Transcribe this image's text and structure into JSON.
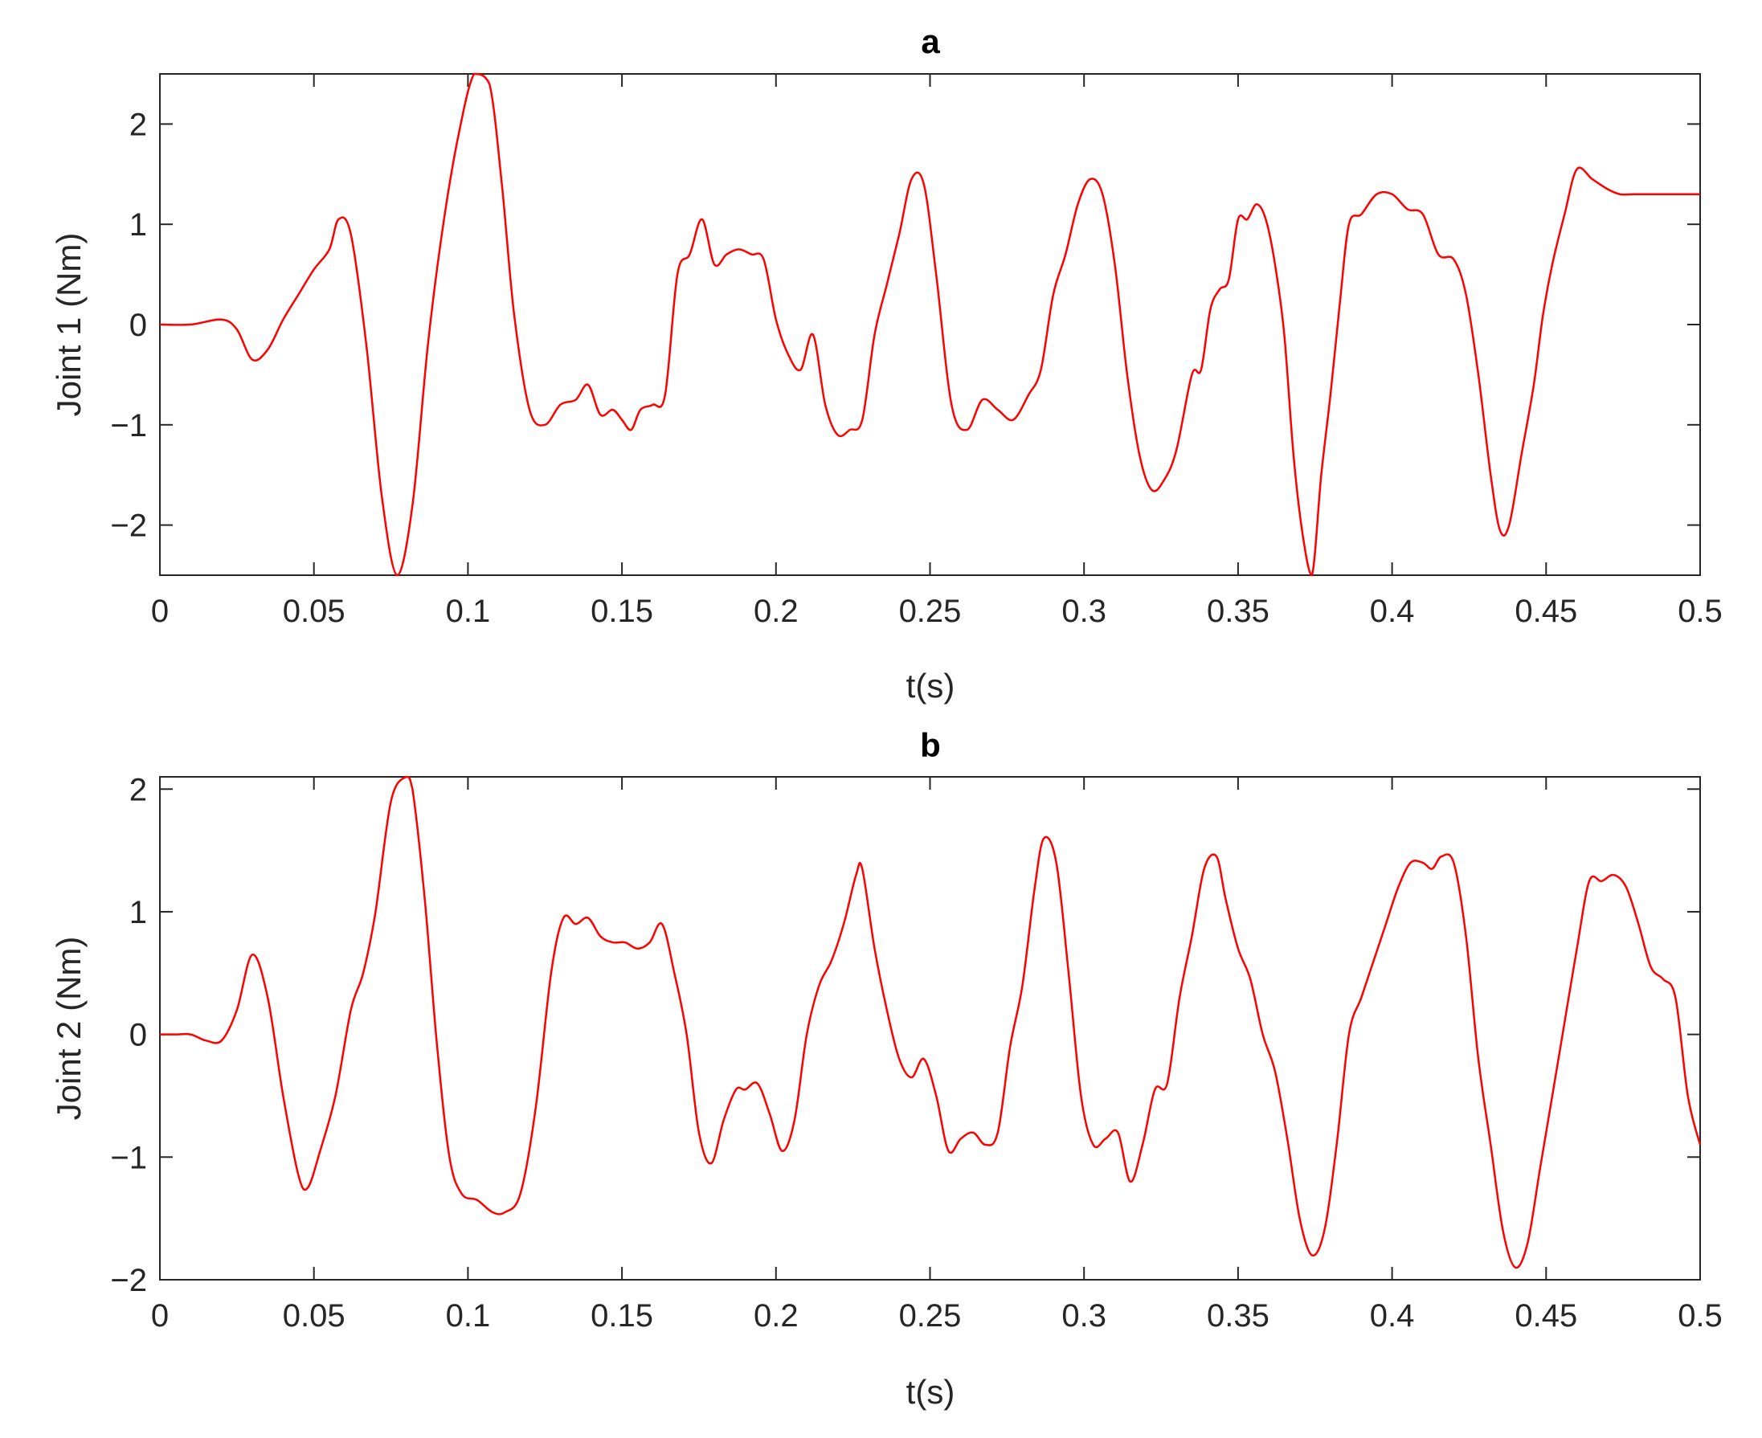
{
  "chart_data": [
    {
      "type": "line",
      "title": "a",
      "xlabel": "t(s)",
      "ylabel": "Joint 1 (Nm)",
      "xlim": [
        0,
        0.5
      ],
      "ylim": [
        -2.5,
        2.5
      ],
      "xticks": [
        0,
        0.05,
        0.1,
        0.15,
        0.2,
        0.25,
        0.3,
        0.35,
        0.4,
        0.45,
        0.5
      ],
      "xtick_labels": [
        "0",
        "0.05",
        "0.1",
        "0.15",
        "0.2",
        "0.25",
        "0.3",
        "0.35",
        "0.4",
        "0.45",
        "0.5"
      ],
      "yticks": [
        -2,
        -1,
        0,
        1,
        2
      ],
      "ytick_labels": [
        "−2",
        "−1",
        "0",
        "1",
        "2"
      ],
      "grid": false,
      "series": [
        {
          "color": "#ff0000",
          "x": [
            0,
            0.01,
            0.02,
            0.025,
            0.03,
            0.035,
            0.04,
            0.045,
            0.05,
            0.055,
            0.058,
            0.062,
            0.067,
            0.072,
            0.077,
            0.082,
            0.087,
            0.092,
            0.097,
            0.102,
            0.107,
            0.111,
            0.115,
            0.12,
            0.125,
            0.13,
            0.135,
            0.139,
            0.143,
            0.147,
            0.15,
            0.153,
            0.156,
            0.16,
            0.164,
            0.168,
            0.172,
            0.176,
            0.18,
            0.184,
            0.188,
            0.192,
            0.196,
            0.2,
            0.204,
            0.208,
            0.212,
            0.216,
            0.22,
            0.224,
            0.228,
            0.232,
            0.236,
            0.24,
            0.244,
            0.248,
            0.252,
            0.257,
            0.262,
            0.267,
            0.272,
            0.277,
            0.282,
            0.286,
            0.29,
            0.294,
            0.298,
            0.302,
            0.306,
            0.31,
            0.314,
            0.318,
            0.322,
            0.326,
            0.33,
            0.335,
            0.338,
            0.341,
            0.344,
            0.347,
            0.35,
            0.353,
            0.356,
            0.359,
            0.362,
            0.365,
            0.368,
            0.371,
            0.374,
            0.377,
            0.38,
            0.383,
            0.386,
            0.39,
            0.395,
            0.4,
            0.405,
            0.41,
            0.415,
            0.42,
            0.424,
            0.428,
            0.432,
            0.435,
            0.438,
            0.442,
            0.446,
            0.449,
            0.452,
            0.456,
            0.46,
            0.465,
            0.47,
            0.474,
            0.478,
            0.482,
            0.486,
            0.49,
            0.495,
            0.5
          ],
          "y": [
            0,
            0,
            0.05,
            -0.05,
            -0.35,
            -0.25,
            0.05,
            0.3,
            0.55,
            0.75,
            1.05,
            0.9,
            -0.2,
            -1.7,
            -2.5,
            -1.8,
            -0.2,
            1.0,
            1.9,
            2.5,
            2.4,
            1.4,
            0.1,
            -0.85,
            -1.0,
            -0.8,
            -0.75,
            -0.6,
            -0.9,
            -0.85,
            -0.95,
            -1.05,
            -0.85,
            -0.8,
            -0.7,
            0.5,
            0.7,
            1.05,
            0.6,
            0.7,
            0.75,
            0.7,
            0.65,
            0.05,
            -0.3,
            -0.45,
            -0.1,
            -0.8,
            -1.1,
            -1.05,
            -0.95,
            -0.1,
            0.4,
            0.9,
            1.45,
            1.4,
            0.5,
            -0.8,
            -1.05,
            -0.75,
            -0.85,
            -0.95,
            -0.7,
            -0.45,
            0.3,
            0.7,
            1.2,
            1.45,
            1.3,
            0.6,
            -0.5,
            -1.3,
            -1.65,
            -1.55,
            -1.25,
            -0.5,
            -0.45,
            0.15,
            0.35,
            0.45,
            1.05,
            1.05,
            1.2,
            1.05,
            0.6,
            -0.1,
            -1.3,
            -2.1,
            -2.5,
            -1.5,
            -0.7,
            0.2,
            1.0,
            1.1,
            1.3,
            1.3,
            1.15,
            1.1,
            0.7,
            0.65,
            0.3,
            -0.5,
            -1.5,
            -2.05,
            -2.0,
            -1.3,
            -0.6,
            0.1,
            0.6,
            1.1,
            1.55,
            1.45,
            1.35,
            1.3,
            1.3,
            1.3,
            1.3,
            1.3,
            1.3,
            1.3
          ]
        }
      ]
    },
    {
      "type": "line",
      "title": "b",
      "xlabel": "t(s)",
      "ylabel": "Joint 2 (Nm)",
      "xlim": [
        0,
        0.5
      ],
      "ylim": [
        -2,
        2.1
      ],
      "xticks": [
        0,
        0.05,
        0.1,
        0.15,
        0.2,
        0.25,
        0.3,
        0.35,
        0.4,
        0.45,
        0.5
      ],
      "xtick_labels": [
        "0",
        "0.05",
        "0.1",
        "0.15",
        "0.2",
        "0.25",
        "0.3",
        "0.35",
        "0.4",
        "0.45",
        "0.5"
      ],
      "yticks": [
        -2,
        -1,
        0,
        1,
        2
      ],
      "ytick_labels": [
        "−2",
        "−1",
        "0",
        "1",
        "2"
      ],
      "grid": false,
      "series": [
        {
          "color": "#ff0000",
          "x": [
            0,
            0.005,
            0.01,
            0.015,
            0.02,
            0.025,
            0.03,
            0.035,
            0.04,
            0.045,
            0.048,
            0.052,
            0.057,
            0.062,
            0.066,
            0.07,
            0.075,
            0.08,
            0.082,
            0.086,
            0.09,
            0.094,
            0.098,
            0.103,
            0.108,
            0.112,
            0.117,
            0.122,
            0.127,
            0.131,
            0.135,
            0.139,
            0.143,
            0.147,
            0.151,
            0.155,
            0.159,
            0.163,
            0.167,
            0.171,
            0.175,
            0.179,
            0.183,
            0.187,
            0.19,
            0.194,
            0.198,
            0.202,
            0.206,
            0.21,
            0.214,
            0.218,
            0.222,
            0.226,
            0.228,
            0.232,
            0.236,
            0.24,
            0.244,
            0.248,
            0.252,
            0.256,
            0.26,
            0.264,
            0.268,
            0.272,
            0.276,
            0.28,
            0.284,
            0.287,
            0.291,
            0.295,
            0.299,
            0.303,
            0.307,
            0.311,
            0.315,
            0.319,
            0.323,
            0.327,
            0.331,
            0.335,
            0.339,
            0.343,
            0.346,
            0.35,
            0.354,
            0.358,
            0.362,
            0.366,
            0.37,
            0.374,
            0.378,
            0.382,
            0.386,
            0.39,
            0.394,
            0.398,
            0.402,
            0.406,
            0.41,
            0.413,
            0.416,
            0.42,
            0.424,
            0.428,
            0.432,
            0.436,
            0.44,
            0.444,
            0.448,
            0.452,
            0.456,
            0.46,
            0.464,
            0.468,
            0.472,
            0.476,
            0.48,
            0.484,
            0.488,
            0.492,
            0.496,
            0.5
          ],
          "y": [
            0,
            0,
            0,
            -0.05,
            -0.05,
            0.2,
            0.65,
            0.3,
            -0.5,
            -1.15,
            -1.25,
            -0.95,
            -0.5,
            0.2,
            0.5,
            1.0,
            1.9,
            2.1,
            2.0,
            1.1,
            -0.1,
            -1.0,
            -1.3,
            -1.35,
            -1.45,
            -1.45,
            -1.3,
            -0.6,
            0.5,
            0.95,
            0.9,
            0.95,
            0.8,
            0.75,
            0.75,
            0.7,
            0.75,
            0.9,
            0.5,
            0.0,
            -0.8,
            -1.05,
            -0.7,
            -0.45,
            -0.45,
            -0.4,
            -0.65,
            -0.95,
            -0.7,
            0.0,
            0.4,
            0.6,
            0.9,
            1.3,
            1.35,
            0.7,
            0.2,
            -0.2,
            -0.35,
            -0.2,
            -0.5,
            -0.95,
            -0.85,
            -0.8,
            -0.9,
            -0.8,
            -0.1,
            0.4,
            1.2,
            1.6,
            1.4,
            0.5,
            -0.5,
            -0.9,
            -0.85,
            -0.8,
            -1.2,
            -0.9,
            -0.45,
            -0.4,
            0.3,
            0.8,
            1.35,
            1.45,
            1.1,
            0.7,
            0.45,
            0.0,
            -0.3,
            -0.85,
            -1.5,
            -1.8,
            -1.6,
            -0.9,
            0.0,
            0.3,
            0.6,
            0.9,
            1.2,
            1.4,
            1.4,
            1.35,
            1.45,
            1.4,
            0.8,
            -0.2,
            -0.9,
            -1.6,
            -1.9,
            -1.7,
            -1.1,
            -0.5,
            0.1,
            0.7,
            1.25,
            1.25,
            1.3,
            1.2,
            0.9,
            0.55,
            0.45,
            0.3,
            -0.5,
            -0.9
          ]
        }
      ]
    }
  ]
}
